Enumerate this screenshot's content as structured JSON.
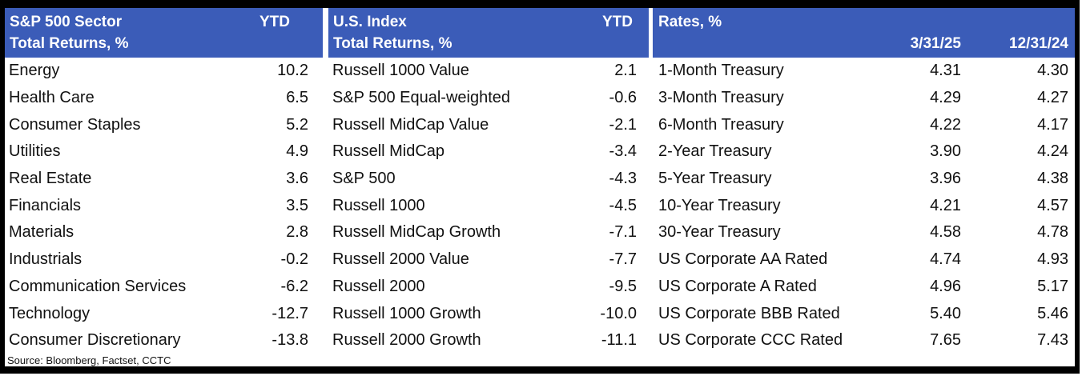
{
  "colors": {
    "header_bg": "#3B5CB8",
    "header_text": "#FFFFFF",
    "body_text": "#111111",
    "frame": "#000000"
  },
  "source_note": "Source: Bloomberg, Factset, CCTC",
  "chart_data": [
    {
      "type": "table",
      "title": "S&P 500 Sector Total Returns, %",
      "title_line1": "S&P 500 Sector",
      "title_line2": "Total Returns, %",
      "value_header": "YTD",
      "rows": [
        [
          "Energy",
          "10.2"
        ],
        [
          "Health Care",
          "6.5"
        ],
        [
          "Consumer Staples",
          "5.2"
        ],
        [
          "Utilities",
          "4.9"
        ],
        [
          "Real Estate",
          "3.6"
        ],
        [
          "Financials",
          "3.5"
        ],
        [
          "Materials",
          "2.8"
        ],
        [
          "Industrials",
          "-0.2"
        ],
        [
          "Communication Services",
          "-6.2"
        ],
        [
          "Technology",
          "-12.7"
        ],
        [
          "Consumer Discretionary",
          "-13.8"
        ]
      ]
    },
    {
      "type": "table",
      "title": "U.S. Index Total Returns, %",
      "title_line1": "U.S. Index",
      "title_line2": "Total Returns, %",
      "value_header": "YTD",
      "rows": [
        [
          "Russell 1000 Value",
          "2.1"
        ],
        [
          "S&P 500 Equal-weighted",
          "-0.6"
        ],
        [
          "Russell MidCap Value",
          "-2.1"
        ],
        [
          "Russell MidCap",
          "-3.4"
        ],
        [
          "S&P 500",
          "-4.3"
        ],
        [
          "Russell 1000",
          "-4.5"
        ],
        [
          "Russell MidCap Growth",
          "-7.1"
        ],
        [
          "Russell 2000 Value",
          "-7.7"
        ],
        [
          "Russell 2000",
          "-9.5"
        ],
        [
          "Russell 1000 Growth",
          "-10.0"
        ],
        [
          "Russell 2000 Growth",
          "-11.1"
        ]
      ]
    },
    {
      "type": "table",
      "title": "Rates, %",
      "title_line1": "Rates, %",
      "col_headers": [
        "3/31/25",
        "12/31/24"
      ],
      "rows": [
        [
          "1-Month Treasury",
          "4.31",
          "4.30"
        ],
        [
          "3-Month Treasury",
          "4.29",
          "4.27"
        ],
        [
          "6-Month Treasury",
          "4.22",
          "4.17"
        ],
        [
          "2-Year Treasury",
          "3.90",
          "4.24"
        ],
        [
          "5-Year Treasury",
          "3.96",
          "4.38"
        ],
        [
          "10-Year Treasury",
          "4.21",
          "4.57"
        ],
        [
          "30-Year Treasury",
          "4.58",
          "4.78"
        ],
        [
          "US Corporate AA Rated",
          "4.74",
          "4.93"
        ],
        [
          "US Corporate A Rated",
          "4.96",
          "5.17"
        ],
        [
          "US Corporate BBB Rated",
          "5.40",
          "5.46"
        ],
        [
          "US Corporate CCC Rated",
          "7.65",
          "7.43"
        ]
      ]
    }
  ]
}
